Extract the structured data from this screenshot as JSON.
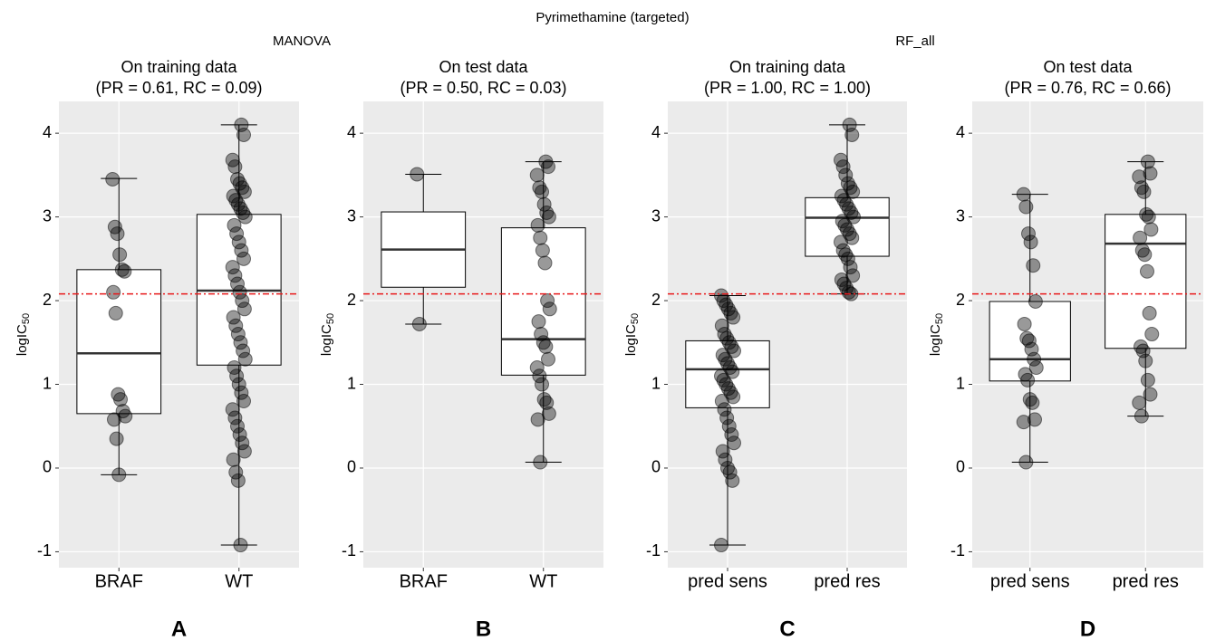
{
  "title": "Pyrimethamine (targeted)",
  "groups": [
    "MANOVA",
    "RF_all"
  ],
  "chart_data": [
    {
      "type": "box",
      "letter": "A",
      "title": "On training data",
      "subtitle": "(PR = 0.61, RC = 0.09)",
      "ylabel": "logIC",
      "ylabel_sub": "50",
      "ylim": [
        -1.19,
        4.38
      ],
      "yticks": [
        -1,
        0,
        1,
        2,
        3,
        4
      ],
      "grid": true,
      "hline": 2.08,
      "hline_color": "#e8191b",
      "point_color": "#000000",
      "categories": [
        "BRAF",
        "WT"
      ],
      "boxes": [
        {
          "min": -0.08,
          "q1": 0.65,
          "median": 1.37,
          "q3": 2.37,
          "max": 3.46,
          "points": [
            3.45,
            2.88,
            2.8,
            2.55,
            2.37,
            2.35,
            2.1,
            1.85,
            0.88,
            0.82,
            0.68,
            0.62,
            0.58,
            0.35,
            -0.08
          ]
        },
        {
          "min": -0.92,
          "q1": 1.23,
          "median": 2.12,
          "q3": 3.03,
          "max": 4.1,
          "points": [
            4.1,
            3.98,
            3.68,
            3.6,
            3.45,
            3.4,
            3.35,
            3.3,
            3.25,
            3.2,
            3.15,
            3.1,
            3.05,
            3.0,
            2.9,
            2.8,
            2.7,
            2.6,
            2.5,
            2.4,
            2.3,
            2.2,
            2.1,
            2.0,
            1.9,
            1.8,
            1.7,
            1.6,
            1.5,
            1.4,
            1.3,
            1.2,
            1.1,
            1.0,
            0.9,
            0.8,
            0.7,
            0.6,
            0.5,
            0.4,
            0.3,
            0.2,
            0.1,
            -0.05,
            -0.15,
            -0.92
          ]
        }
      ]
    },
    {
      "type": "box",
      "letter": "B",
      "title": "On test data",
      "subtitle": "(PR = 0.50, RC = 0.03)",
      "ylabel": "logIC",
      "ylabel_sub": "50",
      "ylim": [
        -1.19,
        4.38
      ],
      "yticks": [
        -1,
        0,
        1,
        2,
        3,
        4
      ],
      "grid": true,
      "hline": 2.08,
      "hline_color": "#e8191b",
      "point_color": "#000000",
      "categories": [
        "BRAF",
        "WT"
      ],
      "boxes": [
        {
          "min": 1.72,
          "q1": 2.16,
          "median": 2.61,
          "q3": 3.06,
          "max": 3.51,
          "points": [
            3.51,
            1.72
          ]
        },
        {
          "min": 0.07,
          "q1": 1.11,
          "median": 1.54,
          "q3": 2.87,
          "max": 3.66,
          "points": [
            3.66,
            3.6,
            3.5,
            3.35,
            3.3,
            3.15,
            3.05,
            3.0,
            2.9,
            2.75,
            2.6,
            2.45,
            2.0,
            1.9,
            1.75,
            1.6,
            1.5,
            1.45,
            1.3,
            1.2,
            1.1,
            1.0,
            0.82,
            0.78,
            0.65,
            0.58,
            0.07
          ]
        }
      ]
    },
    {
      "type": "box",
      "letter": "C",
      "title": "On training data",
      "subtitle": "(PR = 1.00, RC = 1.00)",
      "ylabel": "logIC",
      "ylabel_sub": "50",
      "ylim": [
        -1.19,
        4.38
      ],
      "yticks": [
        -1,
        0,
        1,
        2,
        3,
        4
      ],
      "grid": true,
      "hline": 2.08,
      "hline_color": "#e8191b",
      "point_color": "#000000",
      "categories": [
        "pred sens",
        "pred res"
      ],
      "boxes": [
        {
          "min": -0.92,
          "q1": 0.72,
          "median": 1.18,
          "q3": 1.52,
          "max": 2.06,
          "points": [
            2.06,
            2.0,
            1.95,
            1.9,
            1.85,
            1.8,
            1.7,
            1.6,
            1.55,
            1.5,
            1.45,
            1.4,
            1.35,
            1.3,
            1.25,
            1.2,
            1.15,
            1.1,
            1.05,
            1.0,
            0.95,
            0.9,
            0.85,
            0.8,
            0.7,
            0.6,
            0.5,
            0.4,
            0.3,
            0.2,
            0.1,
            0.0,
            -0.05,
            -0.15,
            -0.92
          ]
        },
        {
          "min": 2.08,
          "q1": 2.53,
          "median": 2.99,
          "q3": 3.23,
          "max": 4.1,
          "points": [
            4.1,
            3.98,
            3.68,
            3.6,
            3.5,
            3.4,
            3.35,
            3.3,
            3.25,
            3.2,
            3.15,
            3.1,
            3.05,
            3.0,
            2.95,
            2.9,
            2.85,
            2.8,
            2.75,
            2.7,
            2.6,
            2.55,
            2.5,
            2.4,
            2.3,
            2.25,
            2.2,
            2.15,
            2.1,
            2.08
          ]
        }
      ]
    },
    {
      "type": "box",
      "letter": "D",
      "title": "On test data",
      "subtitle": "(PR = 0.76, RC = 0.66)",
      "ylabel": "logIC",
      "ylabel_sub": "50",
      "ylim": [
        -1.19,
        4.38
      ],
      "yticks": [
        -1,
        0,
        1,
        2,
        3,
        4
      ],
      "grid": true,
      "hline": 2.08,
      "hline_color": "#e8191b",
      "point_color": "#000000",
      "categories": [
        "pred sens",
        "pred res"
      ],
      "boxes": [
        {
          "min": 0.07,
          "q1": 1.04,
          "median": 1.3,
          "q3": 1.99,
          "max": 3.27,
          "points": [
            3.27,
            3.12,
            2.8,
            2.7,
            2.42,
            1.99,
            1.72,
            1.55,
            1.52,
            1.42,
            1.3,
            1.2,
            1.12,
            1.05,
            0.82,
            0.78,
            0.58,
            0.55,
            0.07
          ]
        },
        {
          "min": 0.62,
          "q1": 1.43,
          "median": 2.68,
          "q3": 3.03,
          "max": 3.66,
          "points": [
            3.66,
            3.52,
            3.48,
            3.35,
            3.3,
            3.03,
            3.0,
            2.85,
            2.75,
            2.6,
            2.55,
            2.35,
            1.85,
            1.6,
            1.45,
            1.4,
            1.28,
            1.05,
            0.88,
            0.78,
            0.62
          ]
        }
      ]
    }
  ]
}
